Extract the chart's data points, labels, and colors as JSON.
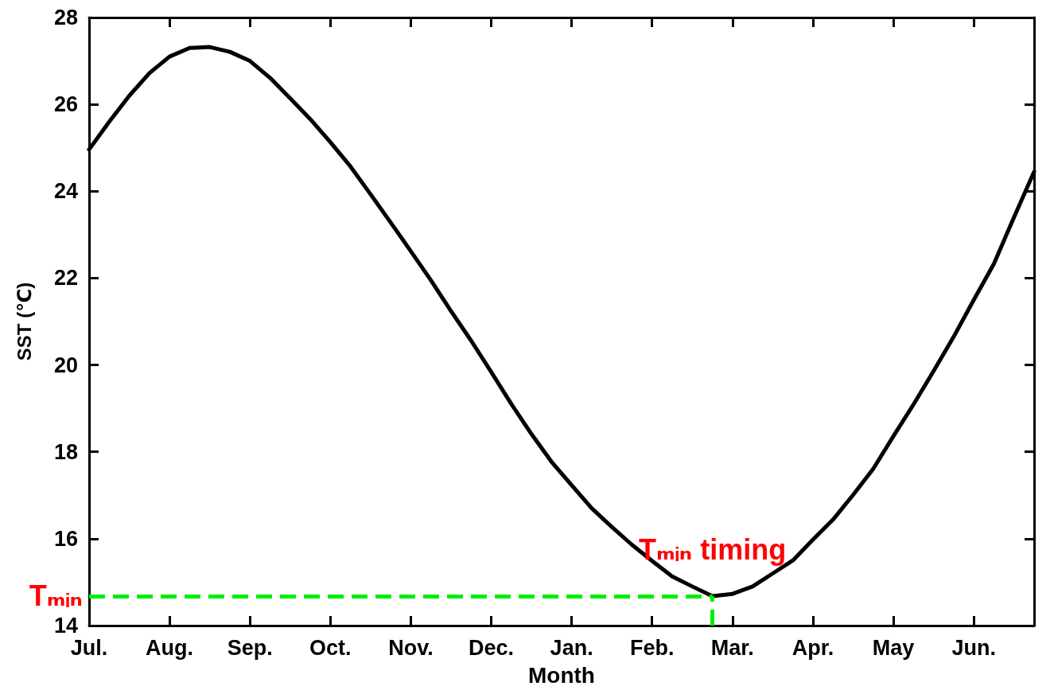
{
  "chart_data": {
    "type": "line",
    "xlabel": "Month",
    "ylabel": "SST (℃)",
    "categories": [
      "Jul.",
      null,
      null,
      null,
      "Aug.",
      null,
      null,
      null,
      "Sep.",
      null,
      null,
      null,
      "Oct.",
      null,
      null,
      null,
      "Nov.",
      null,
      null,
      null,
      "Dec.",
      null,
      null,
      null,
      "Jan.",
      null,
      null,
      null,
      "Feb.",
      null,
      null,
      null,
      "Mar.",
      null,
      null,
      null,
      "Apr.",
      null,
      null,
      null,
      "May",
      null,
      null,
      null,
      "Jun.",
      null,
      null,
      null
    ],
    "series": [
      {
        "color": "#000000",
        "values": [
          24.96,
          25.6,
          26.2,
          26.72,
          27.1,
          27.3,
          27.32,
          27.21,
          27.0,
          26.61,
          26.14,
          25.66,
          25.13,
          24.57,
          23.93,
          23.28,
          22.62,
          21.95,
          21.24,
          20.56,
          19.84,
          19.1,
          18.41,
          17.77,
          17.23,
          16.7,
          16.27,
          15.86,
          15.49,
          15.13,
          14.9,
          14.68,
          14.73,
          14.9,
          15.2,
          15.5,
          15.98,
          16.44,
          17.01,
          17.61,
          18.36,
          19.09,
          19.86,
          20.65,
          21.5,
          22.33,
          23.4,
          24.45
        ]
      }
    ],
    "ylim": [
      14,
      28
    ],
    "yticks": [
      14,
      16,
      18,
      20,
      22,
      24,
      26,
      28
    ],
    "ref_lines": [
      {
        "axis": "y",
        "value": 14.68,
        "label": "Tₘᵢₙ",
        "color": "#00ee00",
        "line_style": "dashed"
      }
    ],
    "annotations": [
      "Tₘᵢₙ timing"
    ],
    "grid": false,
    "marker": "none",
    "line_style": "solid"
  }
}
